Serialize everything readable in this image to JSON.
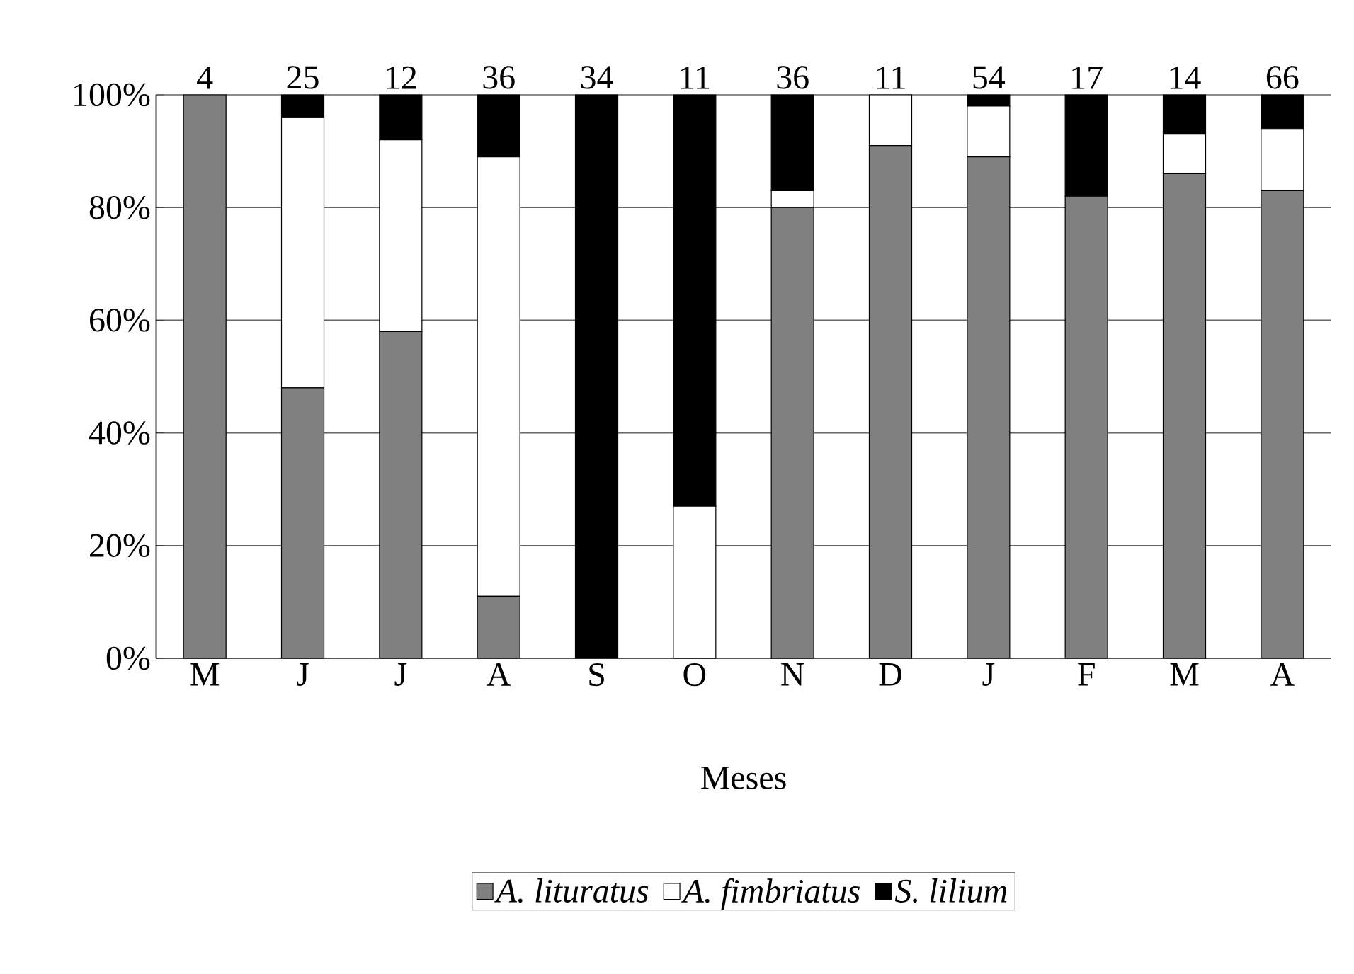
{
  "chart_data": {
    "type": "bar",
    "stacked": true,
    "xlabel": "Meses",
    "categories": [
      "M",
      "J",
      "J",
      "A",
      "S",
      "O",
      "N",
      "D",
      "J",
      "F",
      "M",
      "A"
    ],
    "series": [
      {
        "name": "A. lituratus",
        "color": "#808080",
        "values": [
          100,
          48,
          58,
          11,
          0,
          0,
          80,
          91,
          89,
          82,
          86,
          83
        ]
      },
      {
        "name": "A. fimbriatus",
        "color": "#ffffff",
        "values": [
          0,
          48,
          34,
          78,
          0,
          27,
          3,
          9,
          9,
          0,
          7,
          11
        ]
      },
      {
        "name": "S. lilium",
        "color": "#000000",
        "values": [
          0,
          4,
          8,
          11,
          100,
          73,
          17,
          0,
          2,
          18,
          7,
          6
        ]
      }
    ],
    "annotations": [
      "4",
      "25",
      "12",
      "36",
      "34",
      "11",
      "36",
      "11",
      "54",
      "17",
      "14",
      "66"
    ],
    "ylim": [
      0,
      100
    ],
    "yticks": [
      {
        "value": 0,
        "label": "0%"
      },
      {
        "value": 20,
        "label": "20%"
      },
      {
        "value": 40,
        "label": "40%"
      },
      {
        "value": 60,
        "label": "60%"
      },
      {
        "value": 80,
        "label": "80%"
      },
      {
        "value": 100,
        "label": "100%"
      }
    ],
    "grid": "y",
    "legend": "bottom"
  }
}
